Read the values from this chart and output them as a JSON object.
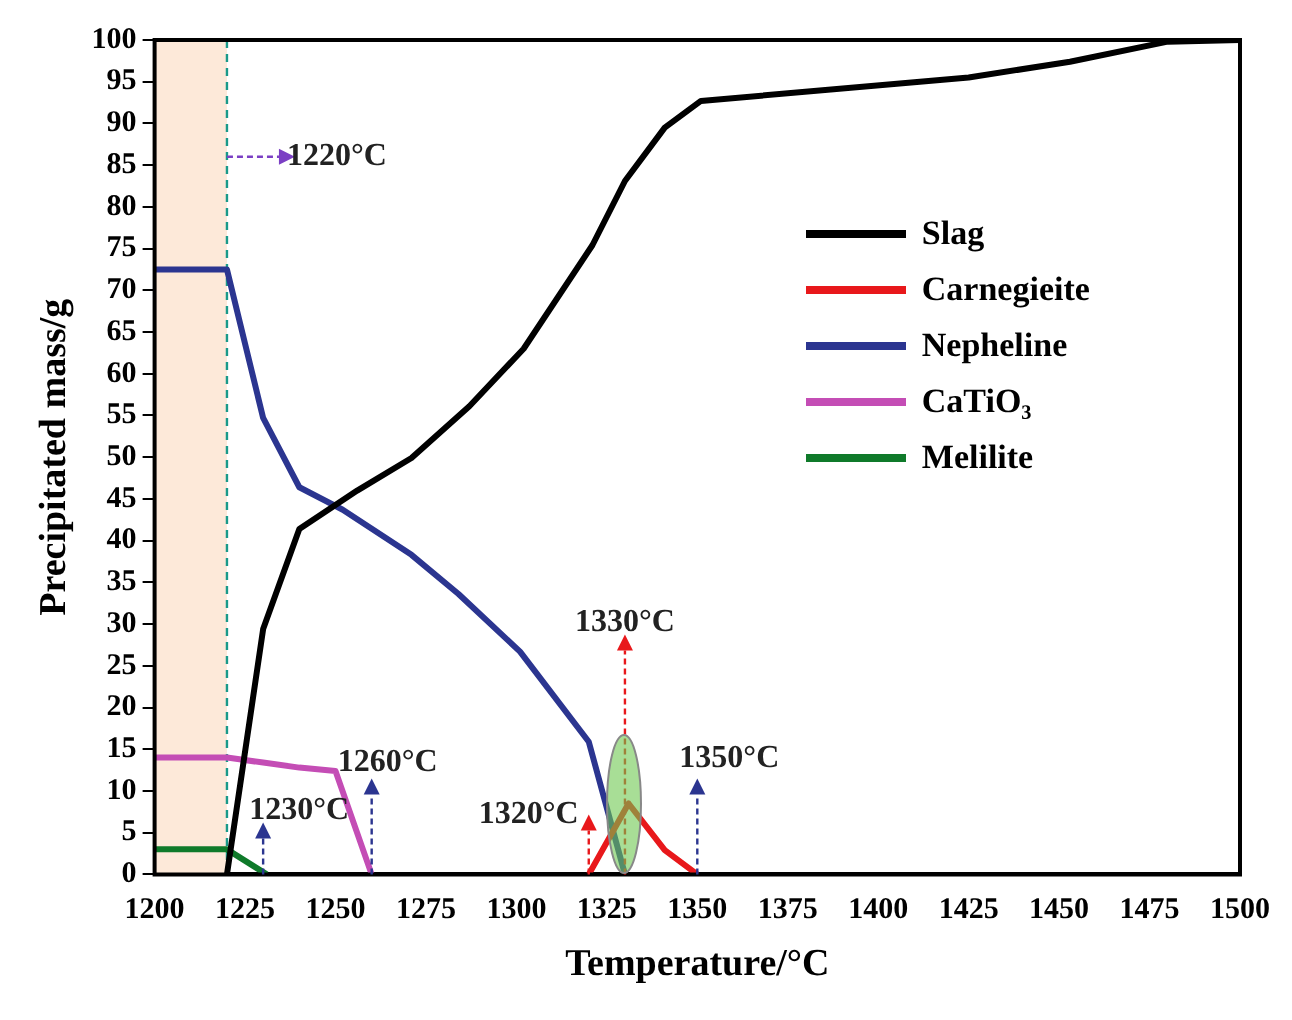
{
  "chart_data": {
    "type": "line",
    "xlabel": "Temperature/°C",
    "ylabel": "Precipitated mass/g",
    "xlim": [
      1200,
      1500
    ],
    "xticks": [
      1200,
      1225,
      1250,
      1275,
      1300,
      1325,
      1350,
      1375,
      1400,
      1425,
      1450,
      1475,
      1500
    ],
    "ylim": [
      0,
      100
    ],
    "yticks": [
      0,
      5,
      10,
      15,
      20,
      25,
      30,
      35,
      40,
      45,
      50,
      55,
      60,
      65,
      70,
      75,
      80,
      85,
      90,
      95,
      100
    ],
    "legend": "right",
    "marker": "none",
    "line_style": "solid",
    "series": [
      {
        "name": "Slag",
        "color": "#000000",
        "x": [
          1220,
          1230,
          1240,
          1256,
          1271,
          1287,
          1302,
          1321,
          1330,
          1341,
          1351,
          1425,
          1453,
          1480,
          1500
        ],
        "values": [
          0,
          29.4,
          41.4,
          46,
          49.9,
          56.1,
          63,
          75.4,
          83.1,
          89.5,
          92.7,
          95.5,
          97.4,
          99.8,
          100
        ]
      },
      {
        "name": "Carnegieite",
        "color": "#e8181b",
        "x": [
          1320,
          1331,
          1341,
          1350
        ],
        "values": [
          0,
          8.5,
          2.9,
          0
        ]
      },
      {
        "name": "Nepheline",
        "color": "#2b3590",
        "x": [
          1200,
          1220,
          1230,
          1240,
          1252,
          1271,
          1284,
          1301,
          1320,
          1330
        ],
        "values": [
          72.5,
          72.5,
          54.7,
          46.4,
          43.7,
          38.3,
          33.6,
          26.7,
          15.9,
          0
        ]
      },
      {
        "name": "CaTiO₃",
        "color": "#c44db5",
        "x": [
          1200,
          1220,
          1230,
          1240,
          1250,
          1260
        ],
        "values": [
          14,
          14,
          13.4,
          12.8,
          12.4,
          0
        ]
      },
      {
        "name": "Melilite",
        "color": "#0f7a2a",
        "x": [
          1200,
          1220,
          1231
        ],
        "values": [
          3,
          3,
          0
        ]
      }
    ],
    "bands": [
      {
        "axis": "x",
        "from": 1200,
        "to": 1220,
        "color": "#fde9d9"
      }
    ],
    "ref_lines": [
      {
        "axis": "x",
        "value": 1220,
        "color": "#1a9a8a",
        "line_style": "dashed"
      }
    ],
    "annotations": [
      {
        "text": "1220°C",
        "x": 1220,
        "y": 86
      },
      {
        "text": "1230°C",
        "x": 1230,
        "y": 0
      },
      {
        "text": "1260°C",
        "x": 1260,
        "y": 0
      },
      {
        "text": "1320°C",
        "x": 1320,
        "y": 0
      },
      {
        "text": "1330°C",
        "x": 1330,
        "y": 0
      },
      {
        "text": "1350°C",
        "x": 1350,
        "y": 0
      }
    ]
  }
}
